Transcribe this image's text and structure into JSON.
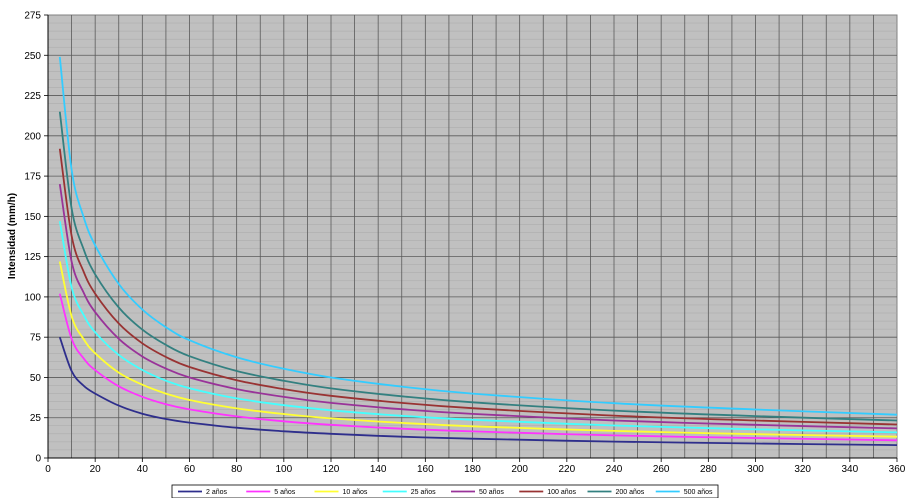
{
  "chart_data": {
    "type": "line",
    "title": "",
    "xlabel": "",
    "ylabel": "Intensidad (mm/h)",
    "xlim": [
      0,
      360
    ],
    "ylim": [
      0,
      275
    ],
    "xticks": [
      0,
      20,
      40,
      60,
      80,
      100,
      120,
      140,
      160,
      180,
      200,
      220,
      240,
      260,
      280,
      300,
      320,
      340,
      360
    ],
    "yticks": [
      0,
      25,
      50,
      75,
      100,
      125,
      150,
      175,
      200,
      225,
      250,
      275
    ],
    "grid": true,
    "legend_position": "bottom",
    "x": [
      5,
      10,
      15,
      20,
      30,
      40,
      50,
      60,
      80,
      100,
      120,
      150,
      180,
      240,
      300,
      360
    ],
    "series": [
      {
        "name": "2 años",
        "color": "#2e2e8c",
        "values": [
          75,
          54,
          45,
          40,
          32.5,
          27.5,
          24.2,
          22,
          18.8,
          16.6,
          15,
          13.2,
          12,
          10.2,
          9,
          8
        ]
      },
      {
        "name": "5 años",
        "color": "#ff33ff",
        "values": [
          102,
          74,
          62,
          54.5,
          44.5,
          38,
          33.4,
          30.2,
          25.8,
          22.8,
          20.6,
          18.2,
          16.5,
          14,
          12.4,
          11
        ]
      },
      {
        "name": "10 años",
        "color": "#ffff33",
        "values": [
          122,
          88,
          74,
          65,
          53,
          45.5,
          40,
          36,
          30.8,
          27.3,
          24.6,
          21.8,
          19.7,
          16.8,
          14.8,
          13.2
        ]
      },
      {
        "name": "25 años",
        "color": "#44ffff",
        "values": [
          147,
          106,
          89,
          78,
          64,
          54.6,
          48,
          43.3,
          37,
          32.8,
          29.6,
          26.2,
          23.7,
          20.2,
          17.8,
          15.9
        ]
      },
      {
        "name": "50 años",
        "color": "#993399",
        "values": [
          170,
          122,
          103,
          90.5,
          74,
          63,
          55.5,
          50,
          42.8,
          37.9,
          34.2,
          30.3,
          27.4,
          23.3,
          20.6,
          18.4
        ]
      },
      {
        "name": "100 años",
        "color": "#993333",
        "values": [
          192,
          138,
          116,
          102,
          83.5,
          71.2,
          62.7,
          56.5,
          48.3,
          42.8,
          38.6,
          34.2,
          30.9,
          26.3,
          23.3,
          20.8
        ]
      },
      {
        "name": "200 años",
        "color": "#338080",
        "values": [
          215,
          155,
          130,
          114,
          93.4,
          79.7,
          70.2,
          63.2,
          54,
          47.9,
          43.2,
          38.3,
          34.6,
          29.4,
          26,
          23.3
        ]
      },
      {
        "name": "500 años",
        "color": "#33ccff",
        "values": [
          249,
          179,
          150,
          132,
          108,
          92.2,
          81.2,
          73.1,
          62.5,
          55.4,
          50,
          44.3,
          40,
          34,
          30.1,
          26.9
        ]
      }
    ]
  }
}
